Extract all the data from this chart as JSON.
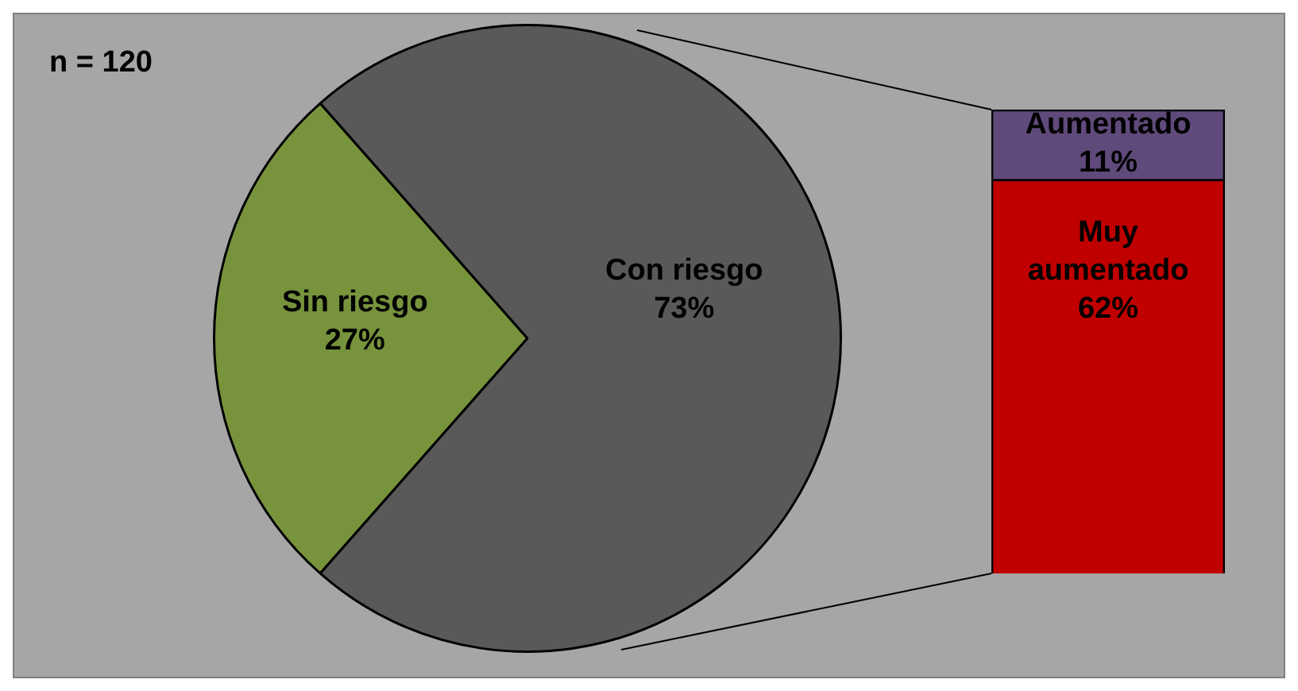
{
  "chart_data": [
    {
      "type": "pie",
      "annotations": [
        "n = 120"
      ],
      "categories": [
        "Sin riesgo",
        "Con riesgo"
      ],
      "values": [
        27,
        73
      ],
      "colors": [
        "#77933c",
        "#595959"
      ],
      "value_labels": [
        "27%",
        "73%"
      ],
      "legend": false
    },
    {
      "type": "bar",
      "stacked": true,
      "categories": [
        null
      ],
      "series": [
        {
          "name": "Muy aumentado",
          "color": "#c00000",
          "values": [
            62
          ],
          "value_labels": [
            "62%"
          ]
        },
        {
          "name": "Aumentado",
          "color": "#604a7b",
          "values": [
            11
          ],
          "value_labels": [
            "11%"
          ]
        }
      ],
      "legend": false
    }
  ]
}
